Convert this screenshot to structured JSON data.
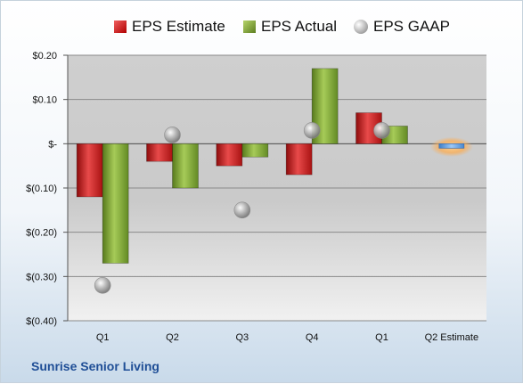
{
  "company": "Sunrise Senior Living",
  "legend": {
    "estimate": "EPS Estimate",
    "actual": "EPS Actual",
    "gaap": "EPS GAAP"
  },
  "colors": {
    "estimate": "#c41c1c",
    "actual": "#7a9e32",
    "gaap": "#a0a0a0",
    "q2_estimate": "#6fa8e8"
  },
  "chart_data": {
    "type": "bar",
    "categories": [
      "Q1",
      "Q2",
      "Q3",
      "Q4",
      "Q1",
      "Q2 Estimate"
    ],
    "series": [
      {
        "name": "EPS Estimate",
        "values": [
          -0.12,
          -0.04,
          -0.05,
          -0.07,
          0.07,
          -0.01
        ]
      },
      {
        "name": "EPS Actual",
        "values": [
          -0.27,
          -0.1,
          -0.03,
          0.17,
          0.04,
          null
        ]
      },
      {
        "name": "EPS GAAP",
        "values": [
          -0.32,
          0.02,
          -0.15,
          0.03,
          0.03,
          null
        ]
      }
    ],
    "y_ticks": [
      "$0.20",
      "$0.10",
      "$-",
      "$(0.10)",
      "$(0.20)",
      "$(0.30)",
      "$(0.40)"
    ],
    "ylim": [
      -0.4,
      0.2
    ],
    "grid": true,
    "legend_position": "top"
  }
}
